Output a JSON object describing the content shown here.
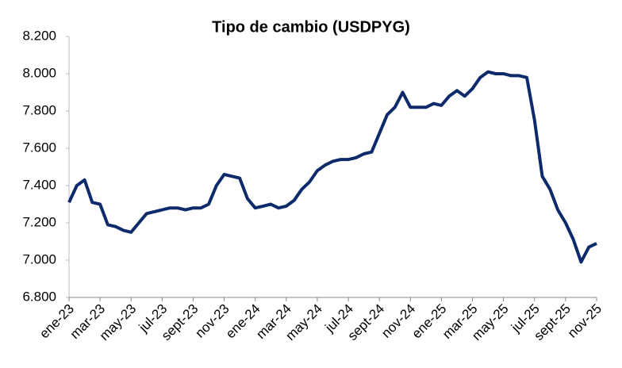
{
  "chart_data": {
    "type": "line",
    "title": "Tipo de cambio (USDPYG)",
    "categories": [
      "ene-23",
      null,
      null,
      null,
      "mar-23",
      null,
      null,
      null,
      "may-23",
      null,
      null,
      null,
      "jul-23",
      null,
      null,
      null,
      "sept-23",
      null,
      null,
      null,
      "nov-23",
      null,
      null,
      null,
      "ene-24",
      null,
      null,
      null,
      "mar-24",
      null,
      null,
      null,
      "may-24",
      null,
      null,
      null,
      "jul-24",
      null,
      null,
      null,
      "sept-24",
      null,
      null,
      null,
      "nov-24",
      null,
      null,
      null,
      "ene-25",
      null,
      null,
      null,
      "mar-25",
      null,
      null,
      null,
      "may-25",
      null,
      null,
      null,
      "jul-25",
      null,
      null,
      null,
      "sept-25",
      null,
      null,
      null,
      "nov-25"
    ],
    "series": [
      {
        "name": "USDPYG",
        "color": "#0d2a6b",
        "values": [
          7310,
          7400,
          7430,
          7310,
          7300,
          7190,
          7180,
          7160,
          7150,
          7200,
          7250,
          7260,
          7270,
          7280,
          7280,
          7270,
          7280,
          7280,
          7300,
          7400,
          7460,
          7450,
          7440,
          7330,
          7280,
          7290,
          7300,
          7280,
          7290,
          7320,
          7380,
          7420,
          7480,
          7510,
          7530,
          7540,
          7540,
          7550,
          7570,
          7580,
          7680,
          7780,
          7820,
          7900,
          7820,
          7820,
          7820,
          7840,
          7830,
          7880,
          7910,
          7880,
          7920,
          7980,
          8010,
          8000,
          8000,
          7990,
          7990,
          7980,
          7750,
          7450,
          7380,
          7270,
          7200,
          7110,
          6990,
          7070,
          7090
        ]
      }
    ],
    "ylim": [
      6800,
      8200
    ],
    "yticks": [
      {
        "value": 6800,
        "label": "6.800"
      },
      {
        "value": 7000,
        "label": "7.000"
      },
      {
        "value": 7200,
        "label": "7.200"
      },
      {
        "value": 7400,
        "label": "7.400"
      },
      {
        "value": 7600,
        "label": "7.600"
      },
      {
        "value": 7800,
        "label": "7.800"
      },
      {
        "value": 8000,
        "label": "8.000"
      },
      {
        "value": 8200,
        "label": "8.200"
      }
    ],
    "grid": false
  }
}
